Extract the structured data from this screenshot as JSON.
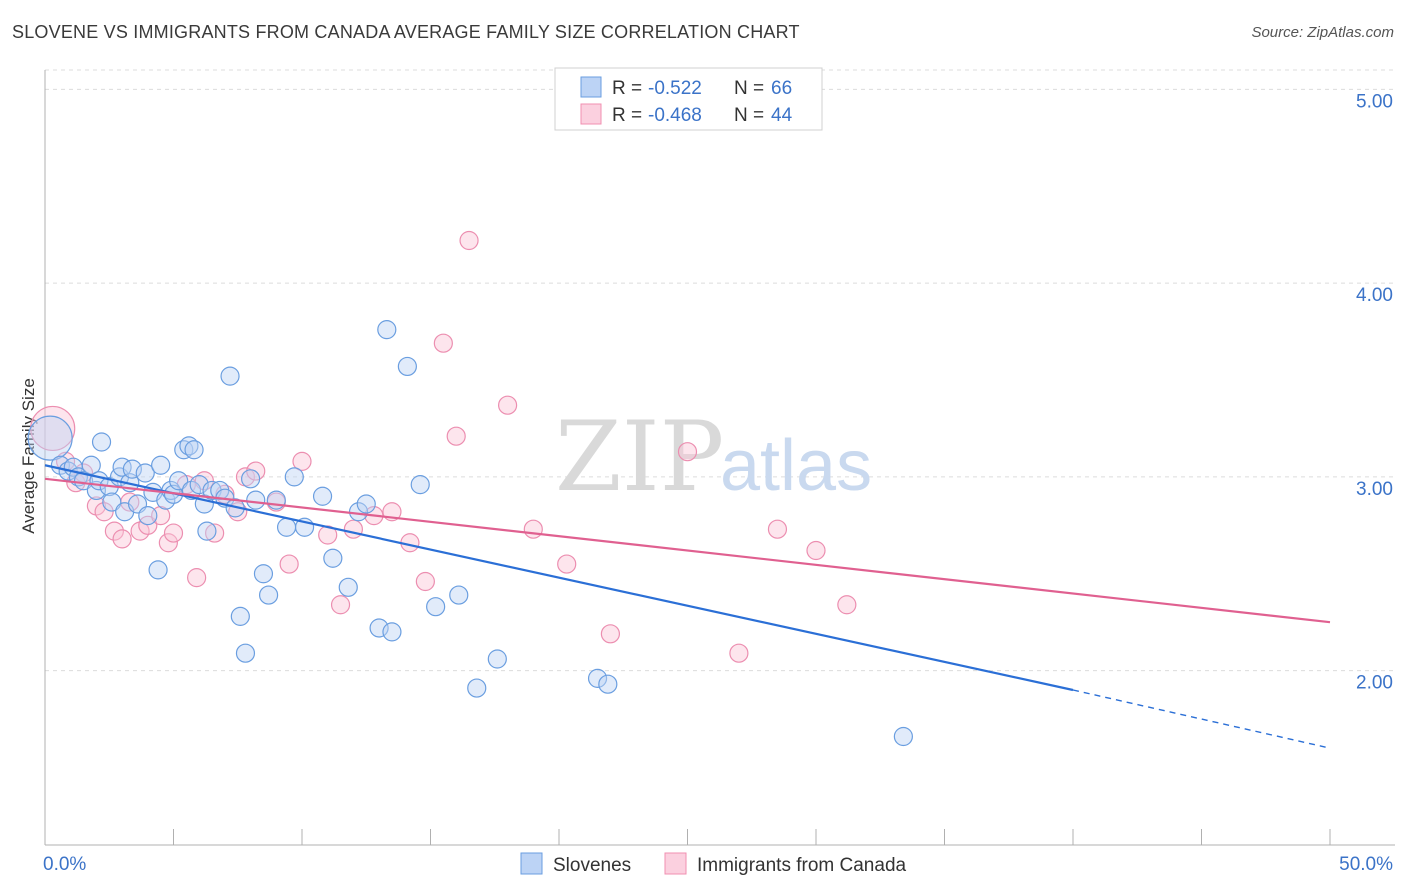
{
  "title": "SLOVENE VS IMMIGRANTS FROM CANADA AVERAGE FAMILY SIZE CORRELATION CHART",
  "source": "Source: ZipAtlas.com",
  "watermark": {
    "zip": "ZIP",
    "atlas": "atlas"
  },
  "legend": {
    "rows": [
      {
        "r_label": "R =",
        "r_value": "-0.522",
        "n_label": "N =",
        "n_value": "66"
      },
      {
        "r_label": "R =",
        "r_value": "-0.468",
        "n_label": "N =",
        "n_value": "44"
      }
    ]
  },
  "chart_data": {
    "type": "scatter",
    "title": "SLOVENE VS IMMIGRANTS FROM CANADA AVERAGE FAMILY SIZE CORRELATION CHART",
    "xlabel": "",
    "ylabel": "Average Family Size",
    "xlim": [
      0,
      50
    ],
    "ylim": [
      1.1,
      5.1
    ],
    "x_tick_labels": [
      "0.0%",
      "50.0%"
    ],
    "y_ticks": [
      2.0,
      3.0,
      4.0,
      5.0
    ],
    "y_tick_labels": [
      "2.00",
      "3.00",
      "4.00",
      "5.00"
    ],
    "grid": true,
    "legend_position": "top-center",
    "colors": {
      "slovenes": "#6a9ee0",
      "canada": "#f08fb0",
      "slovenes_line": "#2b6fd6",
      "canada_line": "#e06090"
    },
    "series": [
      {
        "name": "Slovenes",
        "x": [
          0.2,
          0.6,
          0.9,
          1.1,
          1.3,
          1.5,
          1.8,
          2.0,
          2.1,
          2.2,
          2.5,
          2.6,
          2.9,
          3.0,
          3.1,
          3.3,
          3.4,
          3.6,
          3.9,
          4.0,
          4.2,
          4.4,
          4.5,
          4.7,
          4.9,
          5.0,
          5.2,
          5.4,
          5.6,
          5.7,
          5.8,
          6.0,
          6.2,
          6.3,
          6.5,
          6.8,
          7.0,
          7.2,
          7.4,
          7.6,
          7.8,
          8.0,
          8.2,
          8.5,
          8.7,
          9.0,
          9.4,
          9.7,
          10.1,
          10.8,
          11.2,
          11.8,
          12.2,
          12.5,
          13.0,
          13.3,
          13.5,
          14.1,
          14.6,
          15.2,
          16.1,
          16.8,
          17.6,
          21.5,
          21.9,
          33.4
        ],
        "y": [
          3.2,
          3.06,
          3.03,
          3.05,
          3.0,
          2.98,
          3.06,
          2.93,
          2.98,
          3.18,
          2.95,
          2.87,
          3.0,
          3.05,
          2.82,
          2.97,
          3.04,
          2.86,
          3.02,
          2.8,
          2.92,
          2.52,
          3.06,
          2.88,
          2.93,
          2.91,
          2.98,
          3.14,
          3.16,
          2.93,
          3.14,
          2.96,
          2.86,
          2.72,
          2.93,
          2.93,
          2.89,
          3.52,
          2.84,
          2.28,
          2.09,
          2.99,
          2.88,
          2.5,
          2.39,
          2.88,
          2.74,
          3.0,
          2.74,
          2.9,
          2.58,
          2.43,
          2.82,
          2.86,
          2.22,
          3.76,
          2.2,
          3.57,
          2.96,
          2.33,
          2.39,
          1.91,
          2.06,
          1.96,
          1.93,
          1.66
        ]
      },
      {
        "name": "Immigrants from Canada",
        "x": [
          0.3,
          0.8,
          1.2,
          1.5,
          2.0,
          2.3,
          2.7,
          3.0,
          3.3,
          3.7,
          4.0,
          4.5,
          4.8,
          5.0,
          5.5,
          5.9,
          6.2,
          6.6,
          7.0,
          7.5,
          7.8,
          8.2,
          9.0,
          9.5,
          10.0,
          11.0,
          11.5,
          12.0,
          12.8,
          13.5,
          14.2,
          14.8,
          15.5,
          16.0,
          16.5,
          18.0,
          19.0,
          20.3,
          22.0,
          25.0,
          27.0,
          28.5,
          30.0,
          31.2
        ],
        "y": [
          3.25,
          3.08,
          2.97,
          3.02,
          2.85,
          2.82,
          2.72,
          2.68,
          2.87,
          2.72,
          2.75,
          2.8,
          2.66,
          2.71,
          2.96,
          2.48,
          2.98,
          2.71,
          2.91,
          2.82,
          3.0,
          3.03,
          2.87,
          2.55,
          3.08,
          2.7,
          2.34,
          2.73,
          2.8,
          2.82,
          2.66,
          2.46,
          3.69,
          3.21,
          4.22,
          3.37,
          2.73,
          2.55,
          2.19,
          3.13,
          2.09,
          2.73,
          2.62,
          2.34
        ]
      }
    ],
    "trend_lines": [
      {
        "name": "Slovenes",
        "x_start": 0,
        "y_start": 3.06,
        "x_solid_end": 40,
        "y_solid_end": 1.9,
        "x_dash_end": 50,
        "y_dash_end": 1.6
      },
      {
        "name": "Immigrants from Canada",
        "x_start": 0,
        "y_start": 2.99,
        "x_end": 50,
        "y_end": 2.25
      }
    ]
  }
}
